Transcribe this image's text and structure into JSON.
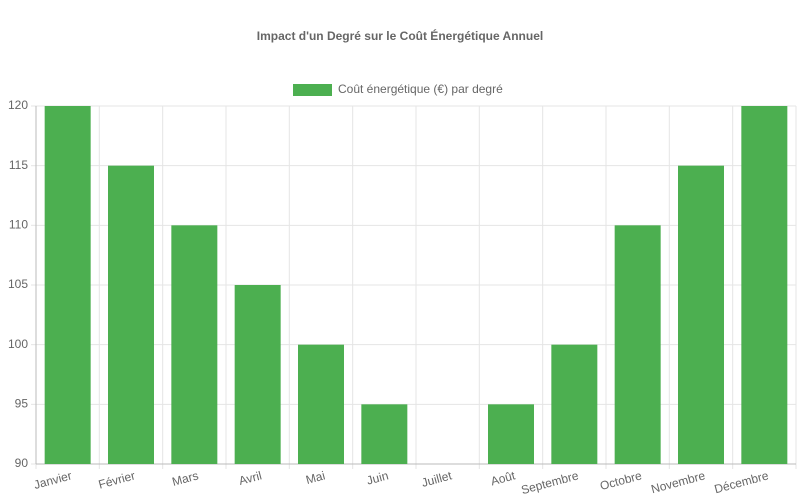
{
  "chart_data": {
    "type": "bar",
    "title": "Impact d'un Degré sur le Coût Énergétique Annuel",
    "categories": [
      "Janvier",
      "Février",
      "Mars",
      "Avril",
      "Mai",
      "Juin",
      "Juillet",
      "Août",
      "Septembre",
      "Octobre",
      "Novembre",
      "Décembre"
    ],
    "series": [
      {
        "name": "Coût énergétique (€) par degré",
        "color": "#4caf50",
        "values": [
          120,
          115,
          110,
          105,
          100,
          95,
          90,
          95,
          100,
          110,
          115,
          120
        ]
      }
    ],
    "ylim": [
      90,
      120
    ],
    "yticks": [
      90,
      95,
      100,
      105,
      110,
      115,
      120
    ],
    "grid": true,
    "legend": "top"
  }
}
